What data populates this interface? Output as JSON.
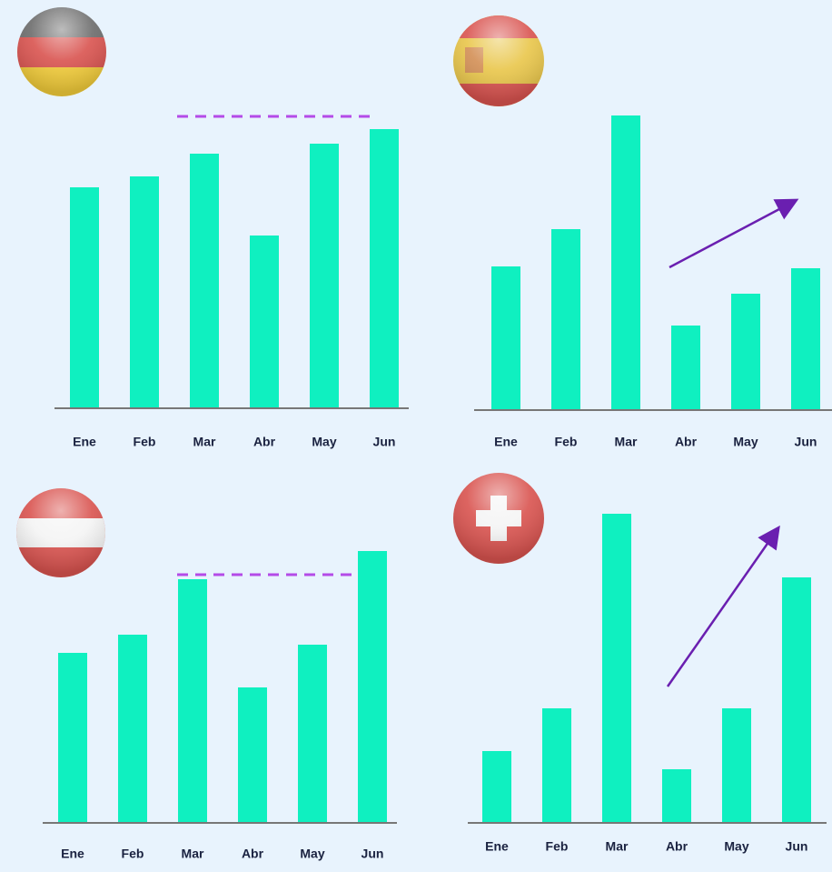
{
  "chart_data": [
    {
      "type": "bar",
      "categories": [
        "Ene",
        "Feb",
        "Mar",
        "Abr",
        "May",
        "Jun"
      ],
      "values": [
        243,
        255,
        280,
        190,
        291,
        307
      ],
      "color": "#0ff0c0",
      "ylim": [
        0,
        350
      ]
    },
    {
      "type": "bar",
      "categories": [
        "Ene",
        "Feb",
        "Mar",
        "Abr",
        "May",
        "Jun"
      ],
      "values": [
        158,
        199,
        324,
        93,
        128,
        156
      ],
      "color": "#0ff0c0",
      "ylim": [
        0,
        350
      ]
    },
    {
      "type": "bar",
      "categories": [
        "Ene",
        "Feb",
        "Mar",
        "Abr",
        "May",
        "Jun"
      ],
      "values": [
        187,
        207,
        268,
        149,
        196,
        299
      ],
      "color": "#0ff0c0",
      "ylim": [
        0,
        350
      ]
    },
    {
      "type": "bar",
      "categories": [
        "Ene",
        "Feb",
        "Mar",
        "Abr",
        "May",
        "Jun"
      ],
      "values": [
        79,
        126,
        340,
        59,
        126,
        270
      ],
      "color": "#0ff0c0",
      "ylim": [
        0,
        350
      ]
    }
  ]
}
